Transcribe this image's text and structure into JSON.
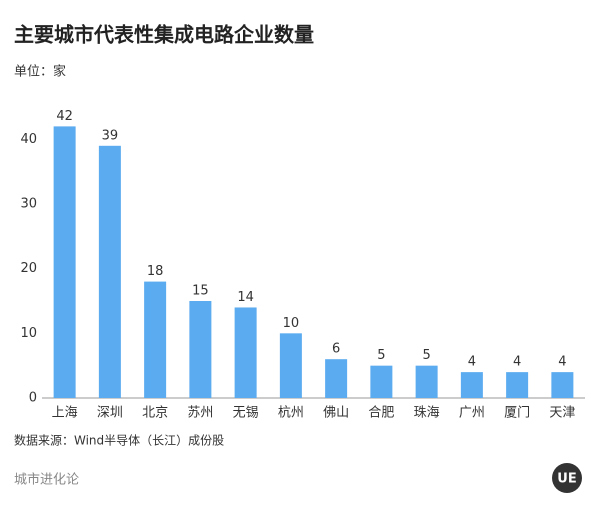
{
  "chart_data": {
    "type": "bar",
    "title": "主要城市代表性集成电路企业数量",
    "subtitle": "单位：家",
    "categories": [
      "上海",
      "深圳",
      "北京",
      "苏州",
      "无锡",
      "杭州",
      "佛山",
      "合肥",
      "珠海",
      "广州",
      "厦门",
      "天津"
    ],
    "values": [
      42,
      39,
      18,
      15,
      14,
      10,
      6,
      5,
      5,
      4,
      4,
      4
    ],
    "color": "#5aabef",
    "ylim": [
      0,
      45
    ],
    "yticks": [
      0,
      10,
      20,
      30,
      40
    ],
    "grid": false,
    "source": "数据来源：Wind半导体（长江）成份股",
    "footer": "城市进化论",
    "logo_text": "UE"
  }
}
